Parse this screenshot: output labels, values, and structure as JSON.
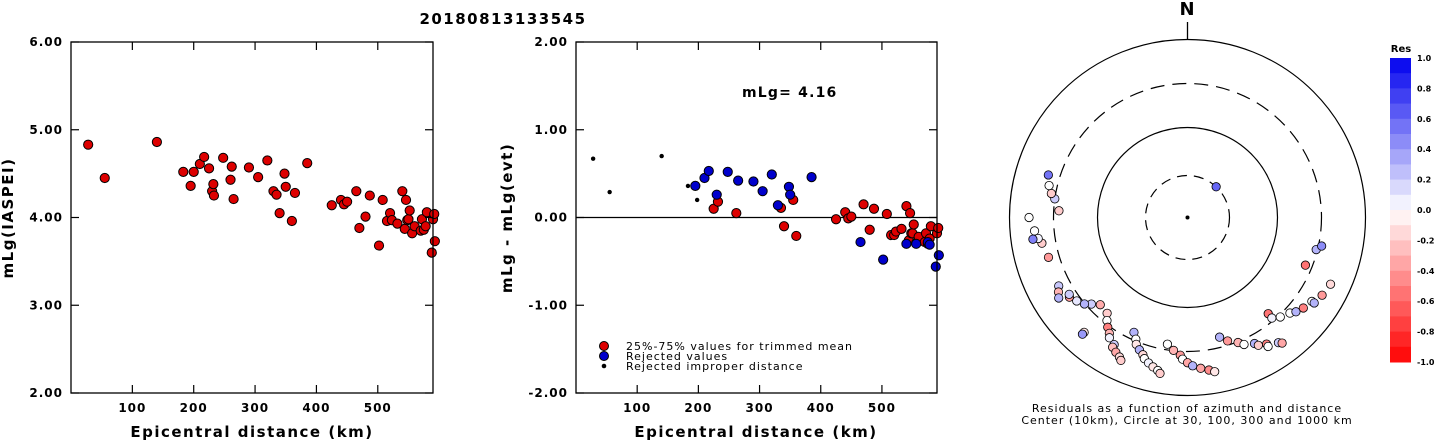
{
  "title": "20180813133545",
  "chart_data": [
    {
      "type": "scatter",
      "xlabel": "Epicentral distance (km)",
      "ylabel": "mLg(IASPEI)",
      "xlim": [
        0,
        590
      ],
      "ylim": [
        2.0,
        6.0
      ],
      "xticks": [
        "100",
        "200",
        "300",
        "400",
        "500"
      ],
      "yticks": [
        "2.00",
        "3.00",
        "4.00",
        "5.00",
        "6.00"
      ],
      "series": [
        {
          "color": "#dd0000",
          "points": [
            [
              28,
              4.83
            ],
            [
              55,
              4.45
            ],
            [
              140,
              4.86
            ],
            [
              183,
              4.52
            ],
            [
              195,
              4.36
            ],
            [
              200,
              4.52
            ],
            [
              210,
              4.61
            ],
            [
              217,
              4.69
            ],
            [
              225,
              4.56
            ],
            [
              230,
              4.3
            ],
            [
              232,
              4.38
            ],
            [
              233,
              4.25
            ],
            [
              248,
              4.68
            ],
            [
              260,
              4.43
            ],
            [
              262,
              4.58
            ],
            [
              265,
              4.21
            ],
            [
              290,
              4.57
            ],
            [
              305,
              4.46
            ],
            [
              320,
              4.65
            ],
            [
              330,
              4.3
            ],
            [
              335,
              4.26
            ],
            [
              340,
              4.05
            ],
            [
              348,
              4.5
            ],
            [
              350,
              4.35
            ],
            [
              360,
              3.96
            ],
            [
              365,
              4.28
            ],
            [
              385,
              4.62
            ],
            [
              425,
              4.14
            ],
            [
              440,
              4.2
            ],
            [
              445,
              4.15
            ],
            [
              450,
              4.18
            ],
            [
              465,
              4.3
            ],
            [
              470,
              3.88
            ],
            [
              480,
              4.01
            ],
            [
              487,
              4.25
            ],
            [
              502,
              3.68
            ],
            [
              508,
              4.2
            ],
            [
              515,
              3.96
            ],
            [
              520,
              4.05
            ],
            [
              523,
              3.97
            ],
            [
              532,
              3.93
            ],
            [
              540,
              4.3
            ],
            [
              544,
              3.87
            ],
            [
              546,
              4.2
            ],
            [
              548,
              3.97
            ],
            [
              550,
              3.98
            ],
            [
              552,
              4.08
            ],
            [
              556,
              3.82
            ],
            [
              560,
              3.9
            ],
            [
              570,
              3.85
            ],
            [
              572,
              3.98
            ],
            [
              575,
              3.86
            ],
            [
              578,
              3.9
            ],
            [
              580,
              4.06
            ],
            [
              588,
              3.6
            ],
            [
              590,
              3.98
            ],
            [
              592,
              4.04
            ],
            [
              593,
              3.73
            ]
          ]
        }
      ]
    },
    {
      "type": "scatter",
      "xlabel": "Epicentral distance (km)",
      "ylabel": "mLg - mLg(evt)",
      "xlim": [
        0,
        590
      ],
      "ylim": [
        -2.0,
        2.0
      ],
      "xticks": [
        "100",
        "200",
        "300",
        "400",
        "500"
      ],
      "yticks": [
        "-2.00",
        "-1.00",
        "0.00",
        "1.00",
        "2.00"
      ],
      "annotation": "mLg= 4.16",
      "series": [
        {
          "name": "25%-75% values for trimmed mean",
          "color": "#dd0000",
          "points": [
            [
              225,
              0.1
            ],
            [
              232,
              0.18
            ],
            [
              262,
              0.05
            ],
            [
              335,
              0.11
            ],
            [
              340,
              -0.1
            ],
            [
              355,
              0.2
            ],
            [
              360,
              -0.21
            ],
            [
              425,
              -0.02
            ],
            [
              440,
              0.06
            ],
            [
              445,
              -0.01
            ],
            [
              450,
              0.01
            ],
            [
              470,
              0.15
            ],
            [
              480,
              -0.14
            ],
            [
              487,
              0.1
            ],
            [
              508,
              0.04
            ],
            [
              515,
              -0.2
            ],
            [
              520,
              -0.2
            ],
            [
              523,
              -0.16
            ],
            [
              532,
              -0.13
            ],
            [
              540,
              0.13
            ],
            [
              544,
              -0.26
            ],
            [
              546,
              0.05
            ],
            [
              548,
              -0.18
            ],
            [
              550,
              -0.18
            ],
            [
              552,
              -0.08
            ],
            [
              556,
              -0.29
            ],
            [
              560,
              -0.22
            ],
            [
              570,
              -0.28
            ],
            [
              572,
              -0.18
            ],
            [
              575,
              -0.3
            ],
            [
              578,
              -0.24
            ],
            [
              580,
              -0.1
            ],
            [
              590,
              -0.18
            ],
            [
              592,
              -0.12
            ]
          ]
        },
        {
          "name": "Rejected values",
          "color": "#0000cc",
          "points": [
            [
              195,
              0.36
            ],
            [
              210,
              0.45
            ],
            [
              217,
              0.53
            ],
            [
              230,
              0.26
            ],
            [
              248,
              0.52
            ],
            [
              265,
              0.42
            ],
            [
              290,
              0.41
            ],
            [
              305,
              0.3
            ],
            [
              320,
              0.49
            ],
            [
              330,
              0.14
            ],
            [
              348,
              0.35
            ],
            [
              350,
              0.26
            ],
            [
              385,
              0.46
            ],
            [
              465,
              -0.28
            ],
            [
              502,
              -0.48
            ],
            [
              540,
              -0.3
            ],
            [
              556,
              -0.3
            ],
            [
              575,
              -0.28
            ],
            [
              578,
              -0.31
            ],
            [
              588,
              -0.56
            ],
            [
              593,
              -0.43
            ]
          ]
        },
        {
          "name": "Rejected improper distance",
          "color": "#000000",
          "points": [
            [
              28,
              0.67
            ],
            [
              55,
              0.29
            ],
            [
              140,
              0.7
            ],
            [
              183,
              0.36
            ],
            [
              198,
              0.2
            ]
          ]
        }
      ]
    },
    {
      "type": "polar scatter",
      "orientation_label": "N",
      "caption_line1": "Residuals as a function of azimuth and distance",
      "caption_line2": "Center (10km), Circle at 30, 100, 300 and 1000 km",
      "colorbar_title": "Res",
      "colorbar_ticks": [
        "1.0",
        "0.8",
        "0.6",
        "0.4",
        "0.2",
        "0.0",
        "-0.2",
        "-0.4",
        "-0.6",
        "-0.8",
        "-1.0"
      ],
      "colorbar_max_color": "#0000ee",
      "colorbar_min_color": "#ff0000",
      "points": [
        [
          225,
          -0.33
        ],
        [
          228,
          0.2
        ],
        [
          230,
          0.3
        ],
        [
          233,
          0.1
        ],
        [
          236,
          -0.4
        ],
        [
          242,
          0.22
        ],
        [
          240,
          -0.3
        ],
        [
          238,
          0.3
        ],
        [
          222,
          -0.1
        ],
        [
          222,
          0.4
        ],
        [
          220,
          -0.2
        ],
        [
          218,
          0.0
        ],
        [
          216,
          -0.5
        ],
        [
          214,
          -0.3
        ],
        [
          213,
          0.05
        ],
        [
          210,
          0.2
        ],
        [
          210,
          -0.25
        ],
        [
          208,
          -0.35
        ],
        [
          206,
          -0.15
        ],
        [
          205,
          -0.2
        ],
        [
          205,
          0.3
        ],
        [
          203,
          0.0
        ],
        [
          202,
          -0.1
        ],
        [
          200,
          0.3
        ],
        [
          198,
          -0.15
        ],
        [
          197,
          0.0
        ],
        [
          195,
          0.05
        ],
        [
          193,
          -0.1
        ],
        [
          191,
          0.0
        ],
        [
          190,
          -0.2
        ],
        [
          189,
          0.0
        ],
        [
          186,
          -0.3
        ],
        [
          183,
          -0.4
        ],
        [
          182,
          0.0
        ],
        [
          180,
          -0.35
        ],
        [
          178,
          0.3
        ],
        [
          175,
          -0.35
        ],
        [
          172,
          -0.45
        ],
        [
          170,
          -0.1
        ],
        [
          165,
          0.3
        ],
        [
          162,
          -0.4
        ],
        [
          158,
          -0.3
        ],
        [
          156,
          0.0
        ],
        [
          152,
          0.3
        ],
        [
          151,
          -0.2
        ],
        [
          148,
          -0.5
        ],
        [
          148,
          0.0
        ],
        [
          144,
          0.2
        ],
        [
          143,
          -0.35
        ],
        [
          140,
          -0.55
        ],
        [
          140,
          0.05
        ],
        [
          137,
          0.0
        ],
        [
          133,
          0.0
        ],
        [
          131,
          0.3
        ],
        [
          128,
          -0.5
        ],
        [
          124,
          0.0
        ],
        [
          124,
          0.3
        ],
        [
          120,
          -0.4
        ],
        [
          115,
          -0.15
        ],
        [
          112,
          -0.55
        ],
        [
          104,
          0.3
        ],
        [
          102,
          0.45
        ],
        [
          237,
          0.2
        ],
        [
          254,
          -0.4
        ],
        [
          260,
          -0.2
        ],
        [
          262,
          0.05
        ],
        [
          265,
          0.0
        ],
        [
          262,
          0.5
        ],
        [
          270,
          0.0
        ],
        [
          273,
          -0.2
        ],
        [
          278,
          0.2
        ],
        [
          280,
          -0.2
        ],
        [
          283,
          0.0
        ],
        [
          287,
          0.55
        ],
        [
          43,
          0.6
        ]
      ]
    }
  ]
}
